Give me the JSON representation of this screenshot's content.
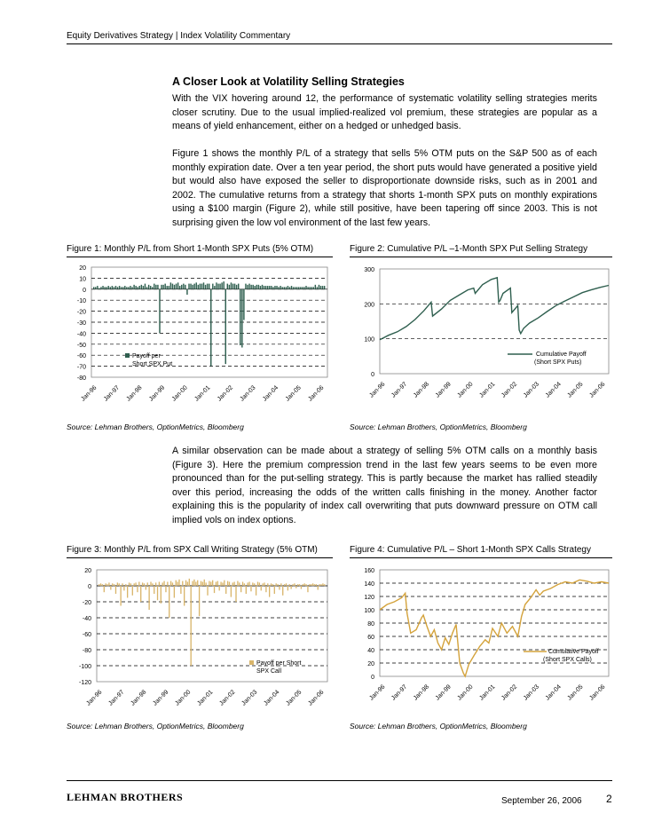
{
  "header": {
    "title": "Equity Derivatives Strategy | Index Volatility Commentary"
  },
  "section_title": "A Closer Look at Volatility Selling Strategies",
  "paragraphs": [
    "With the VIX hovering around 12, the performance of systematic volatility selling strategies merits closer scrutiny. Due to the usual implied-realized vol premium, these strategies are popular as a means of yield enhancement, either on a hedged or unhedged basis.",
    "Figure 1 shows the monthly P/L of a strategy that sells 5% OTM puts on the S&P 500 as of each monthly expiration date. Over a ten year period, the short puts would have generated a positive yield but would also have exposed the seller to disproportionate downside risks, such as in 2001 and 2002. The cumulative returns from a strategy that shorts 1-month SPX puts on monthly expirations using a $100 margin (Figure 2), while still positive, have been tapering off since 2003. This is not surprising given the low vol environment of the last few years.",
    "A similar observation can be made about a strategy of selling 5% OTM calls on a monthly basis (Figure 3). Here the premium compression trend in the last few years seems to be even more pronounced than for the put-selling strategy. This is partly because the market has rallied steadily over this period, increasing the odds of the written calls finishing in the money. Another factor explaining this is the popularity of index call overwriting that puts downward pressure on OTM call implied vols on index options."
  ],
  "source_text": "Source: Lehman Brothers, OptionMetrics, Bloomberg",
  "footer": {
    "logo": "LEHMAN BROTHERS",
    "date": "September 26, 2006",
    "page": "2"
  },
  "colors": {
    "fig1_bar": "#2f5f4f",
    "fig2_line": "#2f5f4f",
    "fig3_bar": "#d9b56a",
    "fig4_line": "#d4a33c"
  },
  "chart_data": [
    {
      "type": "bar",
      "title": "Figure 1: Monthly P/L from Short 1-Month SPX Puts (5% OTM)",
      "legend": "Payoff per Short SPX Put",
      "ylim": [
        -80,
        20
      ],
      "yticks": [
        20,
        10,
        0,
        -10,
        -20,
        -30,
        -40,
        -50,
        -60,
        -70,
        -80
      ],
      "xticks": [
        "Jan-96",
        "Jan-97",
        "Jan-98",
        "Jan-99",
        "Jan-00",
        "Jan-01",
        "Jan-02",
        "Jan-03",
        "Jan-04",
        "Jan-05",
        "Jan-06"
      ],
      "values": [
        2,
        2,
        3,
        1,
        2,
        3,
        2,
        2,
        3,
        2,
        3,
        2,
        3,
        2,
        3,
        2,
        2,
        3,
        2,
        2,
        3,
        2,
        4,
        3,
        2,
        3,
        4,
        3,
        5,
        2,
        4,
        3,
        2,
        5,
        4,
        4,
        -40,
        4,
        4,
        5,
        3,
        3,
        6,
        5,
        4,
        5,
        6,
        3,
        4,
        5,
        4,
        -5,
        5,
        5,
        4,
        5,
        6,
        4,
        5,
        5,
        6,
        4,
        5,
        5,
        -70,
        5,
        3,
        6,
        5,
        5,
        6,
        7,
        -68,
        5,
        4,
        6,
        5,
        5,
        4,
        5,
        -51,
        -53,
        -28,
        5,
        4,
        5,
        4,
        4,
        3,
        4,
        4,
        3,
        4,
        3,
        3,
        3,
        3,
        3,
        2,
        3,
        3,
        2,
        3,
        2,
        2,
        2,
        3,
        2,
        3,
        2,
        2,
        2,
        2,
        2,
        2,
        2,
        3,
        2,
        2,
        2,
        2,
        4,
        2,
        4,
        3,
        3,
        3
      ]
    },
    {
      "type": "line",
      "title": "Figure 2: Cumulative P/L –1-Month SPX Put Selling Strategy",
      "legend": "Cumulative Payoff (Short SPX Puts)",
      "ylim": [
        0,
        300
      ],
      "yticks": [
        300,
        200,
        100,
        0
      ],
      "xticks": [
        "Jan-96",
        "Jan-97",
        "Jan-98",
        "Jan-99",
        "Jan-00",
        "Jan-01",
        "Jan-02",
        "Jan-03",
        "Jan-04",
        "Jan-05",
        "Jan-06"
      ],
      "points": [
        [
          0,
          97
        ],
        [
          6,
          110
        ],
        [
          12,
          120
        ],
        [
          18,
          135
        ],
        [
          24,
          155
        ],
        [
          30,
          180
        ],
        [
          35,
          205
        ],
        [
          36,
          165
        ],
        [
          42,
          185
        ],
        [
          48,
          210
        ],
        [
          54,
          225
        ],
        [
          60,
          240
        ],
        [
          64,
          245
        ],
        [
          65,
          230
        ],
        [
          70,
          255
        ],
        [
          76,
          270
        ],
        [
          80,
          275
        ],
        [
          81,
          205
        ],
        [
          82,
          210
        ],
        [
          84,
          230
        ],
        [
          89,
          245
        ],
        [
          90,
          175
        ],
        [
          94,
          195
        ],
        [
          95,
          125
        ],
        [
          96,
          115
        ],
        [
          98,
          130
        ],
        [
          102,
          145
        ],
        [
          108,
          160
        ],
        [
          114,
          178
        ],
        [
          120,
          195
        ],
        [
          126,
          208
        ],
        [
          132,
          220
        ],
        [
          138,
          232
        ],
        [
          144,
          240
        ],
        [
          150,
          247
        ],
        [
          156,
          253
        ]
      ]
    },
    {
      "type": "bar",
      "title": "Figure 3: Monthly P/L from SPX Call Writing Strategy (5% OTM)",
      "legend": "Payoff per Short SPX Call",
      "ylim": [
        -120,
        20
      ],
      "yticks": [
        20,
        0,
        -20,
        -40,
        -60,
        -80,
        -100,
        -120
      ],
      "xticks": [
        "Jan-96",
        "Jan-97",
        "Jan-98",
        "Jan-99",
        "Jan-00",
        "Jan-01",
        "Jan-02",
        "Jan-03",
        "Jan-04",
        "Jan-05",
        "Jan-06"
      ],
      "values": [
        2,
        3,
        2,
        -8,
        3,
        2,
        4,
        -5,
        3,
        2,
        -10,
        4,
        3,
        -25,
        3,
        -6,
        2,
        -15,
        4,
        3,
        -12,
        3,
        4,
        -8,
        5,
        -20,
        4,
        3,
        -5,
        4,
        -30,
        5,
        3,
        -10,
        4,
        -18,
        5,
        -22,
        4,
        6,
        -8,
        5,
        -40,
        6,
        4,
        -15,
        7,
        5,
        8,
        -10,
        6,
        -25,
        7,
        5,
        9,
        -100,
        6,
        8,
        5,
        7,
        -38,
        6,
        5,
        8,
        4,
        -12,
        6,
        5,
        7,
        -9,
        5,
        6,
        -6,
        5,
        4,
        7,
        -10,
        6,
        5,
        -14,
        4,
        5,
        -20,
        6,
        4,
        -8,
        5,
        3,
        -10,
        4,
        5,
        -7,
        4,
        3,
        -12,
        5,
        4,
        -6,
        3,
        4,
        -8,
        3,
        -14,
        3,
        2,
        -10,
        3,
        2,
        -5,
        3,
        -12,
        2,
        3,
        -6,
        2,
        -4,
        2,
        3,
        -3,
        2,
        2,
        -4,
        2,
        3,
        2,
        -8,
        2,
        2,
        3,
        2,
        2,
        -5,
        2,
        2,
        3,
        2
      ]
    },
    {
      "type": "line",
      "title": "Figure 4: Cumulative P/L – Short 1-Month SPX Calls Strategy",
      "legend": "Cumulative Payoff (Short SPX Calls)",
      "ylim": [
        0,
        160
      ],
      "yticks": [
        160,
        140,
        120,
        100,
        80,
        60,
        40,
        20,
        0
      ],
      "xticks": [
        "Jan-96",
        "Jan-97",
        "Jan-98",
        "Jan-99",
        "Jan-00",
        "Jan-01",
        "Jan-02",
        "Jan-03",
        "Jan-04",
        "Jan-05",
        "Jan-06"
      ],
      "points": [
        [
          0,
          100
        ],
        [
          4,
          108
        ],
        [
          8,
          112
        ],
        [
          12,
          118
        ],
        [
          14,
          125
        ],
        [
          15,
          95
        ],
        [
          17,
          65
        ],
        [
          20,
          70
        ],
        [
          23,
          88
        ],
        [
          24,
          92
        ],
        [
          26,
          75
        ],
        [
          28,
          60
        ],
        [
          30,
          70
        ],
        [
          32,
          50
        ],
        [
          34,
          40
        ],
        [
          36,
          58
        ],
        [
          38,
          48
        ],
        [
          40,
          65
        ],
        [
          42,
          78
        ],
        [
          44,
          20
        ],
        [
          46,
          5
        ],
        [
          47,
          0
        ],
        [
          49,
          18
        ],
        [
          52,
          32
        ],
        [
          55,
          45
        ],
        [
          58,
          55
        ],
        [
          60,
          50
        ],
        [
          62,
          72
        ],
        [
          65,
          60
        ],
        [
          67,
          80
        ],
        [
          70,
          65
        ],
        [
          73,
          75
        ],
        [
          76,
          60
        ],
        [
          78,
          90
        ],
        [
          80,
          108
        ],
        [
          83,
          118
        ],
        [
          86,
          130
        ],
        [
          88,
          122
        ],
        [
          90,
          128
        ],
        [
          94,
          132
        ],
        [
          98,
          138
        ],
        [
          102,
          142
        ],
        [
          106,
          140
        ],
        [
          110,
          145
        ],
        [
          114,
          143
        ],
        [
          118,
          140
        ],
        [
          122,
          142
        ],
        [
          126,
          140
        ]
      ]
    }
  ]
}
